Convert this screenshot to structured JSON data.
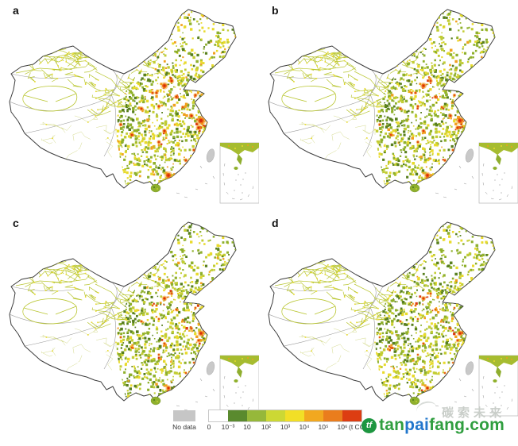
{
  "figure": {
    "panels": [
      {
        "label": "a",
        "render_hints": {
          "yellow_bias": 1.4,
          "hotspot_scale": 1.0,
          "orange_freq": 0.05
        }
      },
      {
        "label": "b",
        "render_hints": {
          "yellow_bias": 1.0,
          "hotspot_scale": 0.85,
          "orange_freq": 0.03
        }
      },
      {
        "label": "c",
        "render_hints": {
          "yellow_bias": 0.95,
          "hotspot_scale": 0.72,
          "orange_freq": 0.024
        }
      },
      {
        "label": "d",
        "render_hints": {
          "yellow_bias": 0.95,
          "hotspot_scale": 0.65,
          "orange_freq": 0.022
        }
      }
    ],
    "legend": {
      "no_data_label": "No data",
      "no_data_color": "#c6c6c6",
      "tick_labels": [
        "0",
        "10⁻³",
        "10",
        "10²",
        "10³",
        "10⁴",
        "10⁵",
        "10⁶"
      ],
      "unit_label": "(t CO₂)",
      "ramp_colors": [
        "#ffffff",
        "#5a8a2e",
        "#96b83a",
        "#ccd834",
        "#f2df26",
        "#f2a81f",
        "#ea7d1d",
        "#dd3d12"
      ]
    },
    "map_palette": {
      "yellow": "#e8da2b",
      "yellow_green": "#c2cd33",
      "green": "#8fb02c",
      "dark_green": "#587f1f",
      "orange": "#f0a01e",
      "red": "#da3c10",
      "no_data_gray": "#c9c9c9",
      "national_border": "#3c3c3c",
      "province_border": "#9a9a9a",
      "road_network": "#b9c631",
      "road_network_pale": "#ccd47a",
      "inset_border": "#b4b4b4"
    }
  },
  "watermark": {
    "slogan": "碳索未来",
    "slogan_color": "#c9cec9",
    "logo_glyph": "tf",
    "logo_color": "#1d9640",
    "site_parts": [
      {
        "text": "tan",
        "color": "#2f9e3f"
      },
      {
        "text": "pai",
        "color": "#2277cc"
      },
      {
        "text": "fang.com",
        "color": "#2f9e3f"
      }
    ]
  }
}
